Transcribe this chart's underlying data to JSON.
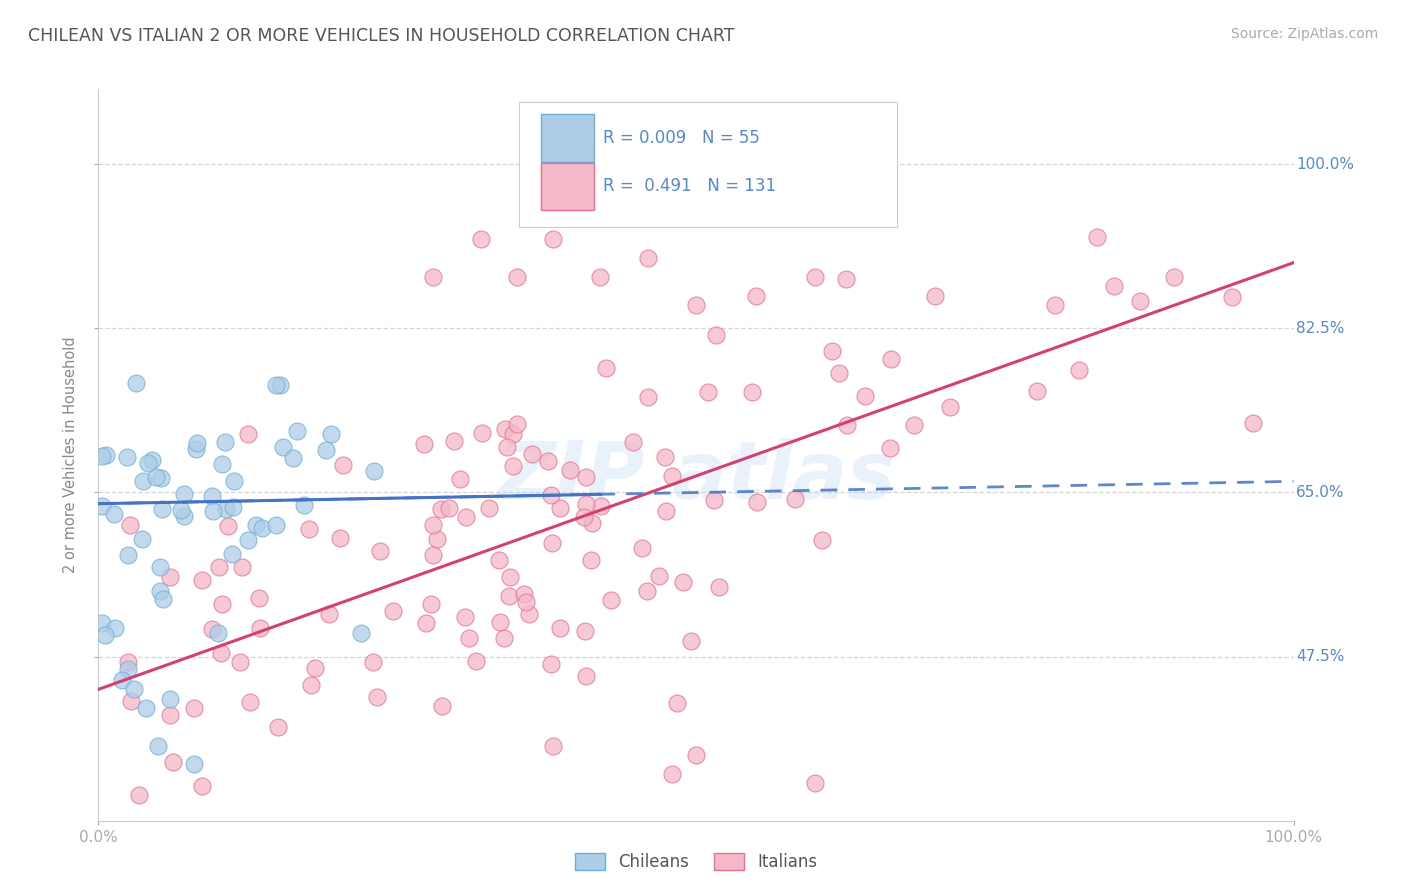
{
  "title": "CHILEAN VS ITALIAN 2 OR MORE VEHICLES IN HOUSEHOLD CORRELATION CHART",
  "source": "Source: ZipAtlas.com",
  "ylabel": "2 or more Vehicles in Household",
  "xlim": [
    0.0,
    1.0
  ],
  "ylim": [
    0.3,
    1.08
  ],
  "yticks": [
    0.475,
    0.65,
    0.825,
    1.0
  ],
  "ytick_labels": [
    "47.5%",
    "65.0%",
    "82.5%",
    "100.0%"
  ],
  "xticks": [
    0.0,
    1.0
  ],
  "xtick_labels": [
    "0.0%",
    "100.0%"
  ],
  "r_chilean": "0.009",
  "n_chilean": "55",
  "r_italian": "0.491",
  "n_italian": "131",
  "color_chilean": "#aecde8",
  "color_italian": "#f4b8c8",
  "edge_color_chilean": "#6baed6",
  "edge_color_italian": "#e57090",
  "line_color_chilean": "#4472c4",
  "line_color_italian": "#d44070",
  "grid_color": "#cccccc",
  "background_color": "#ffffff",
  "title_color": "#555555",
  "tick_label_color": "#5588cc",
  "ch_line_start_y": 0.638,
  "ch_line_end_y": 0.648,
  "it_line_start_y": 0.44,
  "it_line_end_y": 0.895
}
